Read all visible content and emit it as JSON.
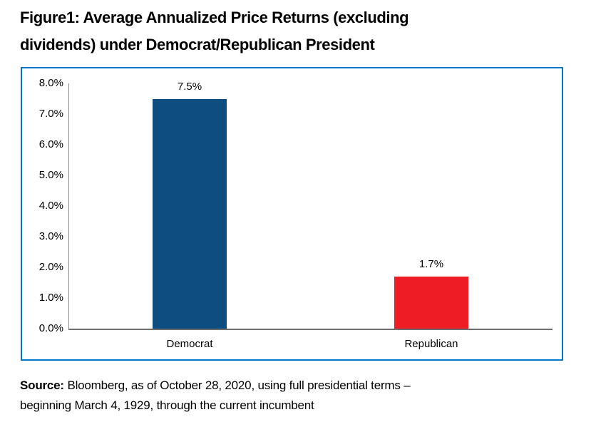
{
  "header": {
    "title_line1": "Figure1: Average Annualized Price Returns (excluding",
    "title_line2": "dividends) under Democrat/Republican President"
  },
  "source": {
    "label": "Source:",
    "line1_rest": "Bloomberg, as of October 28, 2020, using full presidential terms –",
    "line2": "beginning March 4, 1929, through the current incumbent"
  },
  "colors": {
    "frame_border": "#0077C8",
    "democrat_bar": "#0D4D80",
    "republican_bar": "#EE1C25",
    "axis_line_vertical": "#8C8C8C",
    "axis_line_horizontal": "#6E6E6E",
    "text": "#000000"
  },
  "chart_data": {
    "type": "bar",
    "title": "Figure1: Average Annualized Price Returns (excluding dividends) under Democrat/Republican President",
    "categories": [
      "Democrat",
      "Republican"
    ],
    "values": [
      7.5,
      1.7
    ],
    "value_labels": [
      "7.5%",
      "1.7%"
    ],
    "series_colors": [
      "#0D4D80",
      "#EE1C25"
    ],
    "xlabel": "",
    "ylabel": "",
    "ylim": [
      0,
      8
    ],
    "ytick_step": 1.0,
    "ytick_labels": [
      "0.0%",
      "1.0%",
      "2.0%",
      "3.0%",
      "4.0%",
      "5.0%",
      "6.0%",
      "7.0%",
      "8.0%"
    ],
    "grid": false,
    "legend": false,
    "data_labels": true
  }
}
